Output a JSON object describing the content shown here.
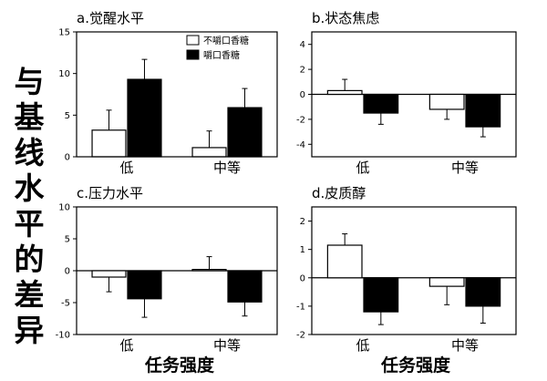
{
  "figure": {
    "ylabel_chars": [
      "与",
      "基",
      "线",
      "水",
      "平",
      "的",
      "差",
      "异"
    ],
    "xlabel_left": "任务强度",
    "xlabel_right": "任务强度"
  },
  "chart_data": [
    {
      "type": "bar",
      "title": "a.觉醒水平",
      "categories": [
        "低",
        "中等"
      ],
      "series": [
        {
          "name": "不嚼口香糖",
          "values": [
            3.2,
            1.1
          ],
          "errors": [
            2.4,
            2.0
          ],
          "color": "#ffffff"
        },
        {
          "name": "嚼口香糖",
          "values": [
            9.3,
            5.9
          ],
          "errors": [
            2.4,
            2.3
          ],
          "color": "#000000"
        }
      ],
      "ylim": [
        0,
        15
      ],
      "yticks": [
        0,
        5,
        10,
        15
      ],
      "legend": "top-left",
      "xlabel": "",
      "ylabel": ""
    },
    {
      "type": "bar",
      "title": "b.状态焦虑",
      "categories": [
        "低",
        "中等"
      ],
      "series": [
        {
          "name": "不嚼口香糖",
          "values": [
            0.3,
            -1.2
          ],
          "errors": [
            0.9,
            0.8
          ],
          "color": "#ffffff"
        },
        {
          "name": "嚼口香糖",
          "values": [
            -1.5,
            -2.6
          ],
          "errors": [
            0.9,
            0.8
          ],
          "color": "#000000"
        }
      ],
      "ylim": [
        -5,
        5
      ],
      "yticks": [
        -4,
        -2,
        0,
        2,
        4
      ],
      "xlabel": "",
      "ylabel": ""
    },
    {
      "type": "bar",
      "title": "c.压力水平",
      "categories": [
        "低",
        "中等"
      ],
      "series": [
        {
          "name": "不嚼口香糖",
          "values": [
            -1.0,
            0.2
          ],
          "errors": [
            2.3,
            2.0
          ],
          "color": "#ffffff"
        },
        {
          "name": "嚼口香糖",
          "values": [
            -4.4,
            -4.9
          ],
          "errors": [
            2.9,
            2.2
          ],
          "color": "#000000"
        }
      ],
      "ylim": [
        -10,
        10
      ],
      "yticks": [
        -10,
        -5,
        0,
        5,
        10
      ],
      "xlabel": "",
      "ylabel": ""
    },
    {
      "type": "bar",
      "title": "d.皮质醇",
      "categories": [
        "低",
        "中等"
      ],
      "series": [
        {
          "name": "不嚼口香糖",
          "values": [
            1.15,
            -0.3
          ],
          "errors": [
            0.4,
            0.65
          ],
          "color": "#ffffff"
        },
        {
          "name": "嚼口香糖",
          "values": [
            -1.2,
            -1.0
          ],
          "errors": [
            0.45,
            0.6
          ],
          "color": "#000000"
        }
      ],
      "ylim": [
        -2,
        2.5
      ],
      "yticks": [
        -2,
        -1,
        0,
        1,
        2
      ],
      "xlabel": "",
      "ylabel": ""
    }
  ]
}
